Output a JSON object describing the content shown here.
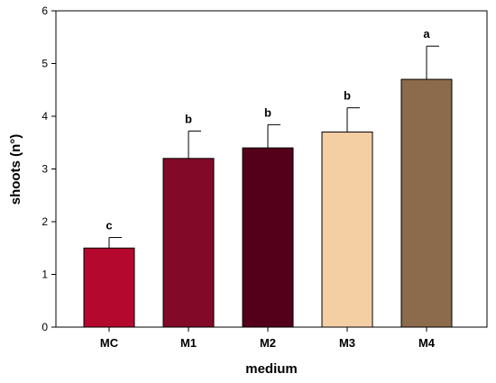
{
  "chart_data": {
    "type": "bar",
    "title": "",
    "xlabel": "medium",
    "ylabel": "shoots (n°)",
    "ylim": [
      0,
      6
    ],
    "yticks": [
      0,
      1,
      2,
      3,
      4,
      5,
      6
    ],
    "categories": [
      "MC",
      "M1",
      "M2",
      "M3",
      "M4"
    ],
    "values": [
      1.5,
      3.2,
      3.4,
      3.7,
      4.7
    ],
    "error_bars": [
      0.2,
      0.52,
      0.44,
      0.46,
      0.63
    ],
    "significance_letters": [
      "c",
      "b",
      "b",
      "b",
      "a"
    ],
    "colors": [
      "#b5082e",
      "#820a28",
      "#54001a",
      "#f4cfa4",
      "#8c6a4c"
    ],
    "grid": false,
    "legend": "none"
  }
}
